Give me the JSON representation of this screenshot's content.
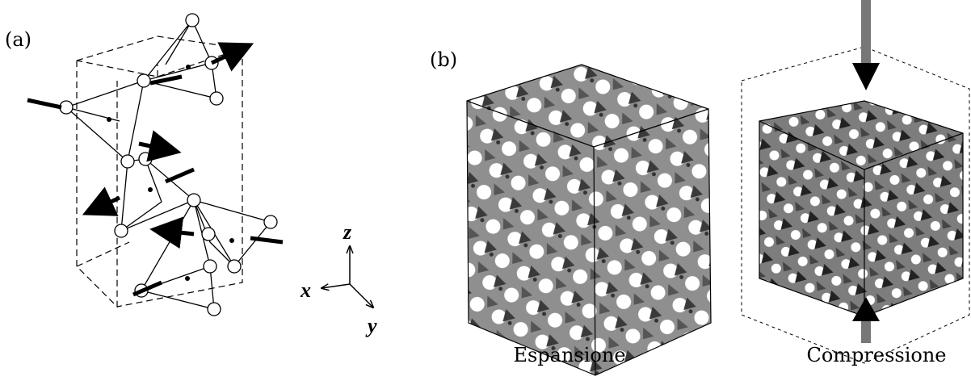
{
  "panels": {
    "a": {
      "label": "(a)",
      "axes": {
        "x": "x",
        "y": "y",
        "z": "z"
      }
    },
    "b": {
      "label": "(b)",
      "captions": [
        "Espansione",
        "Compressione"
      ]
    }
  }
}
